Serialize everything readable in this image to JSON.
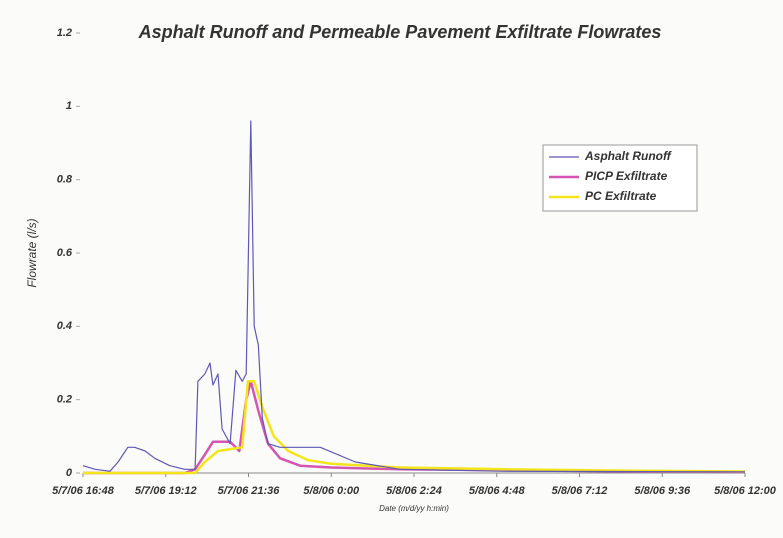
{
  "chart_data": {
    "type": "line",
    "title": "Asphalt Runoff and Permeable Pavement Exfiltrate Flowrates",
    "x_label": "Date (m/d/yy h:min)",
    "y_label": "Flowrate (l/s)",
    "xlim": [
      "5/7/06 16:48",
      "5/8/06 12:00"
    ],
    "xticks": [
      "5/7/06 16:48",
      "5/7/06 19:12",
      "5/7/06 21:36",
      "5/8/06 0:00",
      "5/8/06 2:24",
      "5/8/06 4:48",
      "5/8/06 7:12",
      "5/8/06 9:36",
      "5/8/06 12:00"
    ],
    "ylim": [
      0,
      1.2
    ],
    "yticks": [
      0,
      0.2,
      0.4,
      0.6,
      0.8,
      1,
      1.2
    ],
    "grid": false,
    "legend_position": "upper right",
    "series": [
      {
        "name": "Asphalt Runoff",
        "color": "#5f58b4",
        "width": 1.2,
        "x": [
          "5/7/06 16:48",
          "5/7/06 17:09",
          "5/7/06 17:35",
          "5/7/06 17:49",
          "5/7/06 18:06",
          "5/7/06 18:18",
          "5/7/06 18:36",
          "5/7/06 18:53",
          "5/7/06 19:19",
          "5/7/06 19:45",
          "5/7/06 20:03",
          "5/7/06 20:08",
          "5/7/06 20:20",
          "5/7/06 20:29",
          "5/7/06 20:34",
          "5/7/06 20:43",
          "5/7/06 20:50",
          "5/7/06 21:04",
          "5/7/06 21:14",
          "5/7/06 21:25",
          "5/7/06 21:32",
          "5/7/06 21:40",
          "5/7/06 21:46",
          "5/7/06 21:53",
          "5/7/06 22:00",
          "5/7/06 22:10",
          "5/7/06 22:31",
          "5/7/06 23:41",
          "5/8/06 0:42",
          "5/8/06 2:00",
          "5/8/06 4:54",
          "5/8/06 12:00"
        ],
        "values": [
          0.02,
          0.01,
          0.005,
          0.03,
          0.07,
          0.07,
          0.06,
          0.04,
          0.02,
          0.01,
          0.01,
          0.25,
          0.27,
          0.3,
          0.24,
          0.27,
          0.12,
          0.08,
          0.28,
          0.25,
          0.27,
          0.96,
          0.4,
          0.35,
          0.15,
          0.08,
          0.07,
          0.07,
          0.03,
          0.01,
          0.005,
          0.003
        ]
      },
      {
        "name": "PICP Exfiltrate",
        "color": "#d455b2",
        "width": 2.5,
        "x": [
          "5/7/06 16:48",
          "5/7/06 19:45",
          "5/7/06 20:03",
          "5/7/06 20:20",
          "5/7/06 20:34",
          "5/7/06 21:04",
          "5/7/06 21:20",
          "5/7/06 21:32",
          "5/7/06 21:40",
          "5/7/06 21:53",
          "5/7/06 22:10",
          "5/7/06 22:31",
          "5/7/06 23:06",
          "5/8/06 0:00",
          "5/8/06 2:00",
          "5/8/06 4:54",
          "5/8/06 8:00",
          "5/8/06 12:00"
        ],
        "values": [
          0,
          0,
          0.01,
          0.05,
          0.085,
          0.085,
          0.06,
          0.2,
          0.25,
          0.17,
          0.08,
          0.04,
          0.02,
          0.015,
          0.01,
          0.008,
          0.005,
          0.003
        ]
      },
      {
        "name": "PC Exfiltrate",
        "color": "#f4e41a",
        "width": 2.5,
        "x": [
          "5/7/06 16:48",
          "5/7/06 20:03",
          "5/7/06 20:20",
          "5/7/06 20:43",
          "5/7/06 21:04",
          "5/7/06 21:25",
          "5/7/06 21:35",
          "5/7/06 21:46",
          "5/7/06 22:00",
          "5/7/06 22:20",
          "5/7/06 22:45",
          "5/7/06 23:20",
          "5/8/06 0:00",
          "5/8/06 2:00",
          "5/8/06 5:00",
          "5/8/06 9:00",
          "5/8/06 12:00"
        ],
        "values": [
          0,
          0,
          0.03,
          0.06,
          0.065,
          0.07,
          0.25,
          0.25,
          0.18,
          0.1,
          0.06,
          0.035,
          0.025,
          0.015,
          0.01,
          0.006,
          0.004
        ]
      }
    ]
  }
}
